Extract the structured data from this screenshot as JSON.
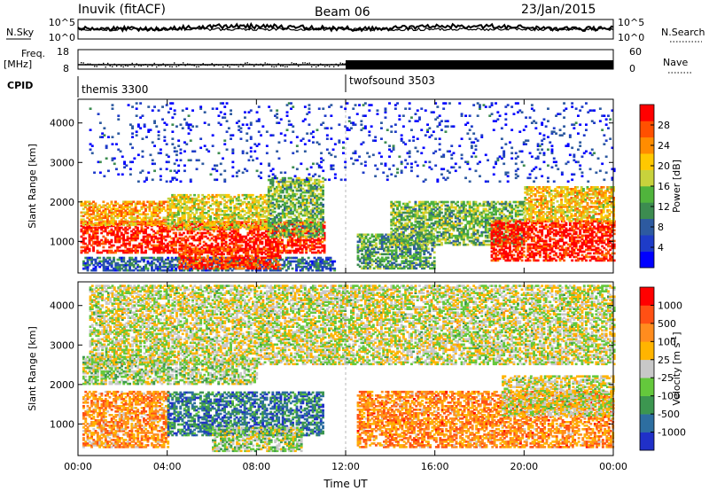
{
  "header": {
    "station": "Inuvik (fitACF)",
    "beam": "Beam 06",
    "date": "23/Jan/2015"
  },
  "top_panels": {
    "nsky_label": "N.Sky",
    "nsky_ticks": [
      "10^5",
      "10^0"
    ],
    "nsearch_label": "N.Search",
    "nsearch_ticks": [
      "10^5",
      "10^0"
    ],
    "freq_label": "Freq.",
    "freq_unit": "[MHz]",
    "freq_ticks": [
      "18",
      "8"
    ],
    "nave_label": "Nave",
    "nave_ticks": [
      "60",
      "0"
    ],
    "cpid_label": "CPID",
    "cpid_segments": [
      {
        "name": "themis 3300",
        "start_hour": 0,
        "end_hour": 12
      },
      {
        "name": "twofsound 3503",
        "start_hour": 12,
        "end_hour": 24
      }
    ]
  },
  "chart_data": [
    {
      "type": "heatmap",
      "quantity": "Power",
      "ylabel": "Slant Range [km]",
      "ylim": [
        200,
        4600
      ],
      "yticks": [
        "1000",
        "2000",
        "3000",
        "4000"
      ],
      "xlim": [
        0,
        24
      ],
      "colorbar_label": "Power [dB]",
      "colorbar_ticks": [
        "28",
        "24",
        "20",
        "16",
        "12",
        "8",
        "4"
      ],
      "colorbar_colors": [
        "#0000ff",
        "#1e3cc8",
        "#2d5aa0",
        "#3c8c50",
        "#50b43c",
        "#c8d23c",
        "#ffc800",
        "#ff8c00",
        "#ff5000",
        "#ff0000"
      ],
      "regions": [
        {
          "t0": 0.1,
          "t1": 11.0,
          "r0": 700,
          "r1": 1500,
          "level": 0.95
        },
        {
          "t0": 0.1,
          "t1": 4.0,
          "r0": 1400,
          "r1": 2000,
          "level": 0.7
        },
        {
          "t0": 4.0,
          "t1": 8.5,
          "r0": 1300,
          "r1": 2200,
          "level": 0.6
        },
        {
          "t0": 0.2,
          "t1": 11.5,
          "r0": 250,
          "r1": 600,
          "level": 0.25
        },
        {
          "t0": 4.5,
          "t1": 9.0,
          "r0": 300,
          "r1": 800,
          "level": 0.9
        },
        {
          "t0": 8.5,
          "t1": 11.0,
          "r0": 1100,
          "r1": 2600,
          "level": 0.45
        },
        {
          "t0": 12.5,
          "t1": 16.0,
          "r0": 300,
          "r1": 1200,
          "level": 0.4
        },
        {
          "t0": 14.0,
          "t1": 20.0,
          "r0": 900,
          "r1": 2000,
          "level": 0.45
        },
        {
          "t0": 18.5,
          "t1": 24.0,
          "r0": 500,
          "r1": 1500,
          "level": 0.95
        },
        {
          "t0": 20.0,
          "t1": 24.0,
          "r0": 1500,
          "r1": 2400,
          "level": 0.65
        },
        {
          "t0": 0.5,
          "t1": 24.0,
          "r0": 2500,
          "r1": 4500,
          "level": 0.15
        }
      ]
    },
    {
      "type": "heatmap",
      "quantity": "Velocity",
      "ylabel": "Slant Range [km]",
      "ylim": [
        200,
        4600
      ],
      "yticks": [
        "1000",
        "2000",
        "3000",
        "4000"
      ],
      "xlim": [
        0,
        24
      ],
      "xticks": [
        "00:00",
        "04:00",
        "08:00",
        "12:00",
        "16:00",
        "20:00",
        "00:00"
      ],
      "xlabel": "Time UT",
      "colorbar_label": "Velocity [m s^-1]",
      "colorbar_ticks": [
        "1000",
        "500",
        "100",
        "25",
        "-25",
        "-100",
        "-500",
        "-1000"
      ],
      "colorbar_colors": [
        "#2030c8",
        "#2d6ea0",
        "#3c9650",
        "#64c83c",
        "#c8c8c8",
        "#ffb400",
        "#ff8c1e",
        "#ff5014",
        "#ff0000"
      ],
      "regions": [
        {
          "t0": 0.2,
          "t1": 4.0,
          "r0": 400,
          "r1": 1800,
          "level": 0.7
        },
        {
          "t0": 4.0,
          "t1": 11.0,
          "r0": 700,
          "r1": 1800,
          "level": 0.2
        },
        {
          "t0": 0.2,
          "t1": 4.0,
          "r0": 2000,
          "r1": 2700,
          "level": 0.45
        },
        {
          "t0": 4.0,
          "t1": 8.0,
          "r0": 2000,
          "r1": 2600,
          "level": 0.45
        },
        {
          "t0": 6.0,
          "t1": 10.0,
          "r0": 300,
          "r1": 900,
          "level": 0.45
        },
        {
          "t0": 12.5,
          "t1": 24.0,
          "r0": 400,
          "r1": 1800,
          "level": 0.72
        },
        {
          "t0": 19.0,
          "t1": 24.0,
          "r0": 1200,
          "r1": 2200,
          "level": 0.5
        },
        {
          "t0": 0.5,
          "t1": 24.0,
          "r0": 2500,
          "r1": 4500,
          "level": 0.5
        }
      ]
    }
  ]
}
